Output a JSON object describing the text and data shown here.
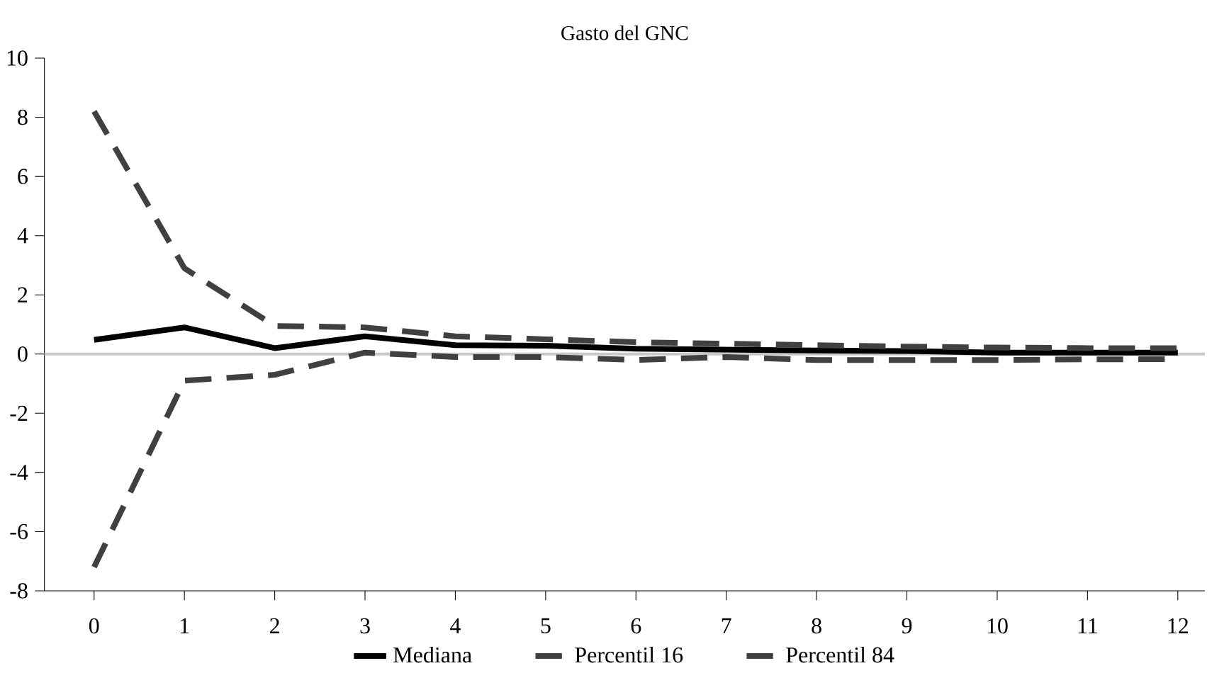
{
  "chart_data": {
    "type": "line",
    "title": "Gasto del GNC",
    "x": [
      0,
      1,
      2,
      3,
      4,
      5,
      6,
      7,
      8,
      9,
      10,
      11,
      12
    ],
    "series": [
      {
        "name": "Mediana",
        "color": "#000000",
        "line_style": "solid",
        "values": [
          0.48,
          0.9,
          0.2,
          0.6,
          0.3,
          0.28,
          0.18,
          0.15,
          0.12,
          0.1,
          0.05,
          0.05,
          0.05
        ]
      },
      {
        "name": "Percentil 16",
        "color": "#404040",
        "line_style": "dashed",
        "values": [
          -7.2,
          -0.9,
          -0.7,
          0.05,
          -0.1,
          -0.1,
          -0.2,
          -0.1,
          -0.2,
          -0.2,
          -0.2,
          -0.18,
          -0.17
        ]
      },
      {
        "name": "Percentil 84",
        "color": "#404040",
        "line_style": "dashed",
        "values": [
          8.2,
          2.9,
          0.95,
          0.9,
          0.6,
          0.5,
          0.4,
          0.35,
          0.3,
          0.25,
          0.22,
          0.2,
          0.2
        ]
      }
    ],
    "xlim": [
      -0.55,
      12.3
    ],
    "ylim": [
      -8,
      10
    ],
    "xticks": [
      0,
      1,
      2,
      3,
      4,
      5,
      6,
      7,
      8,
      9,
      10,
      11,
      12
    ],
    "yticks": [
      -8,
      -6,
      -4,
      -2,
      0,
      2,
      4,
      6,
      8,
      10
    ],
    "ref_lines": [
      {
        "axis": "y",
        "value": 0,
        "color": "#c8c8c8"
      }
    ],
    "grid": false,
    "legend": "bottom",
    "marker": "none"
  }
}
